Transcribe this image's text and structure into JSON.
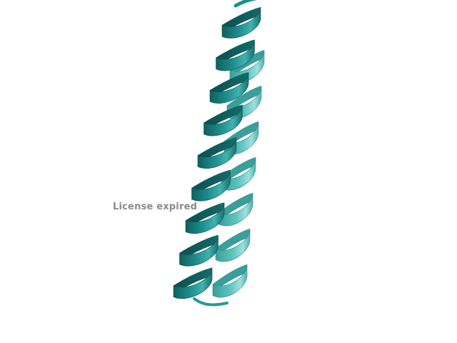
{
  "viewer": {
    "background": "#ffffff",
    "watermark_text": "License expired",
    "watermark_color": "#8a8a8a"
  },
  "molecule": {
    "representation": "cartoon",
    "secondary_structure": "alpha-helix",
    "helix_count": 2,
    "colors": {
      "front_helix": "#1f8f8f",
      "front_helix_dark": "#0f5f5f",
      "front_helix_light": "#3fb3b0",
      "back_helix": "#5cc4c0",
      "back_helix_dark": "#3a9e9a",
      "back_helix_light": "#9fe0dc"
    }
  }
}
